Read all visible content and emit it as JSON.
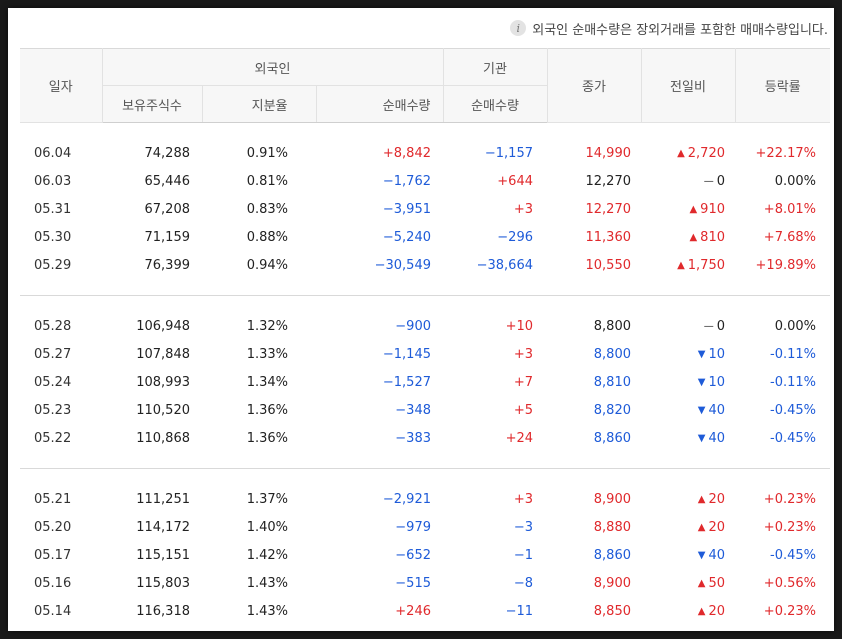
{
  "note": {
    "icon": "info-icon",
    "text": "외국인 순매수량은 장외거래를 포함한 매매수량입니다."
  },
  "headers": {
    "date": "일자",
    "foreign": "외국인",
    "institution": "기관",
    "close": "종가",
    "change": "전일비",
    "rate": "등락률",
    "holdings": "보유주식수",
    "share": "지분율",
    "foreign_net": "순매수량",
    "inst_net": "순매수량"
  },
  "groups": [
    [
      {
        "date": "06.04",
        "hold": "74,288",
        "share": "0.91%",
        "fnet": "+8,842",
        "fdir": "red",
        "inet": "−1,157",
        "idir": "blue",
        "close": "14,990",
        "cdir": "red",
        "arrow": "up",
        "change": "2,720",
        "rate": "+22.17%"
      },
      {
        "date": "06.03",
        "hold": "65,446",
        "share": "0.81%",
        "fnet": "−1,762",
        "fdir": "blue",
        "inet": "+644",
        "idir": "red",
        "close": "12,270",
        "cdir": "black",
        "arrow": "flat",
        "change": "0",
        "rate": "0.00%"
      },
      {
        "date": "05.31",
        "hold": "67,208",
        "share": "0.83%",
        "fnet": "−3,951",
        "fdir": "blue",
        "inet": "+3",
        "idir": "red",
        "close": "12,270",
        "cdir": "red",
        "arrow": "up",
        "change": "910",
        "rate": "+8.01%"
      },
      {
        "date": "05.30",
        "hold": "71,159",
        "share": "0.88%",
        "fnet": "−5,240",
        "fdir": "blue",
        "inet": "−296",
        "idir": "blue",
        "close": "11,360",
        "cdir": "red",
        "arrow": "up",
        "change": "810",
        "rate": "+7.68%"
      },
      {
        "date": "05.29",
        "hold": "76,399",
        "share": "0.94%",
        "fnet": "−30,549",
        "fdir": "blue",
        "inet": "−38,664",
        "idir": "blue",
        "close": "10,550",
        "cdir": "red",
        "arrow": "up",
        "change": "1,750",
        "rate": "+19.89%"
      }
    ],
    [
      {
        "date": "05.28",
        "hold": "106,948",
        "share": "1.32%",
        "fnet": "−900",
        "fdir": "blue",
        "inet": "+10",
        "idir": "red",
        "close": "8,800",
        "cdir": "black",
        "arrow": "flat",
        "change": "0",
        "rate": "0.00%"
      },
      {
        "date": "05.27",
        "hold": "107,848",
        "share": "1.33%",
        "fnet": "−1,145",
        "fdir": "blue",
        "inet": "+3",
        "idir": "red",
        "close": "8,800",
        "cdir": "blue",
        "arrow": "down",
        "change": "10",
        "rate": "-0.11%"
      },
      {
        "date": "05.24",
        "hold": "108,993",
        "share": "1.34%",
        "fnet": "−1,527",
        "fdir": "blue",
        "inet": "+7",
        "idir": "red",
        "close": "8,810",
        "cdir": "blue",
        "arrow": "down",
        "change": "10",
        "rate": "-0.11%"
      },
      {
        "date": "05.23",
        "hold": "110,520",
        "share": "1.36%",
        "fnet": "−348",
        "fdir": "blue",
        "inet": "+5",
        "idir": "red",
        "close": "8,820",
        "cdir": "blue",
        "arrow": "down",
        "change": "40",
        "rate": "-0.45%"
      },
      {
        "date": "05.22",
        "hold": "110,868",
        "share": "1.36%",
        "fnet": "−383",
        "fdir": "blue",
        "inet": "+24",
        "idir": "red",
        "close": "8,860",
        "cdir": "blue",
        "arrow": "down",
        "change": "40",
        "rate": "-0.45%"
      }
    ],
    [
      {
        "date": "05.21",
        "hold": "111,251",
        "share": "1.37%",
        "fnet": "−2,921",
        "fdir": "blue",
        "inet": "+3",
        "idir": "red",
        "close": "8,900",
        "cdir": "red",
        "arrow": "up",
        "change": "20",
        "rate": "+0.23%"
      },
      {
        "date": "05.20",
        "hold": "114,172",
        "share": "1.40%",
        "fnet": "−979",
        "fdir": "blue",
        "inet": "−3",
        "idir": "blue",
        "close": "8,880",
        "cdir": "red",
        "arrow": "up",
        "change": "20",
        "rate": "+0.23%"
      },
      {
        "date": "05.17",
        "hold": "115,151",
        "share": "1.42%",
        "fnet": "−652",
        "fdir": "blue",
        "inet": "−1",
        "idir": "blue",
        "close": "8,860",
        "cdir": "blue",
        "arrow": "down",
        "change": "40",
        "rate": "-0.45%"
      },
      {
        "date": "05.16",
        "hold": "115,803",
        "share": "1.43%",
        "fnet": "−515",
        "fdir": "blue",
        "inet": "−8",
        "idir": "blue",
        "close": "8,900",
        "cdir": "red",
        "arrow": "up",
        "change": "50",
        "rate": "+0.56%"
      },
      {
        "date": "05.14",
        "hold": "116,318",
        "share": "1.43%",
        "fnet": "+246",
        "fdir": "red",
        "inet": "−11",
        "idir": "blue",
        "close": "8,850",
        "cdir": "red",
        "arrow": "up",
        "change": "20",
        "rate": "+0.23%"
      }
    ]
  ]
}
